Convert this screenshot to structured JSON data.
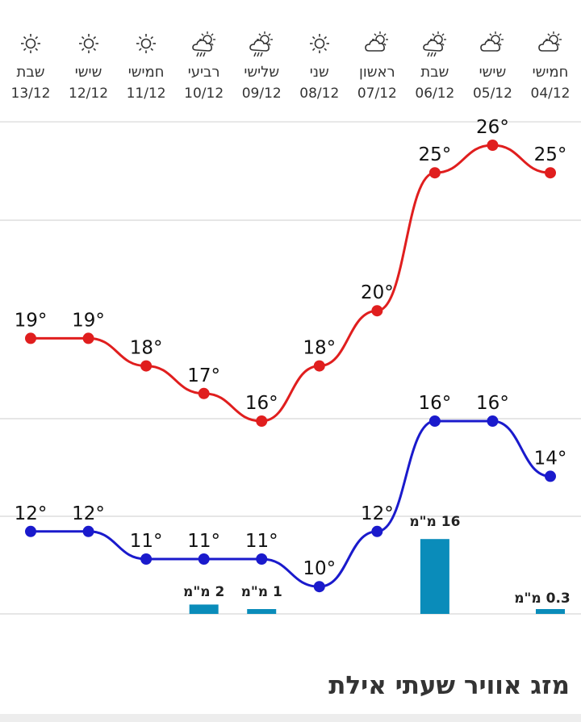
{
  "page": {
    "title": "מזג אוויר שעתי אילת"
  },
  "days": [
    {
      "name": "חמישי",
      "date": "04/12",
      "icon": "partly-cloudy-icon"
    },
    {
      "name": "שישי",
      "date": "05/12",
      "icon": "partly-cloudy-icon"
    },
    {
      "name": "שבת",
      "date": "06/12",
      "icon": "rain-showers-icon"
    },
    {
      "name": "ראשון",
      "date": "07/12",
      "icon": "partly-cloudy-icon"
    },
    {
      "name": "שני",
      "date": "08/12",
      "icon": "sunny-icon"
    },
    {
      "name": "שלישי",
      "date": "09/12",
      "icon": "rain-showers-icon"
    },
    {
      "name": "רביעי",
      "date": "10/12",
      "icon": "rain-showers-icon"
    },
    {
      "name": "חמישי",
      "date": "11/12",
      "icon": "sunny-icon"
    },
    {
      "name": "שישי",
      "date": "12/12",
      "icon": "sunny-icon"
    },
    {
      "name": "שבת",
      "date": "13/12",
      "icon": "sunny-icon"
    }
  ],
  "chart_data": {
    "type": "line",
    "x": [
      "04/12",
      "05/12",
      "06/12",
      "07/12",
      "08/12",
      "09/12",
      "10/12",
      "11/12",
      "12/12",
      "13/12"
    ],
    "x_direction": "right-to-left",
    "series": [
      {
        "values": [
          25,
          26,
          25,
          20,
          18,
          16,
          17,
          18,
          19,
          19
        ],
        "labels": [
          "25°",
          "26°",
          "25°",
          "20°",
          "18°",
          "16°",
          "17°",
          "18°",
          "19°",
          "19°"
        ],
        "color": "#e01e1e"
      },
      {
        "values": [
          14,
          16,
          16,
          12,
          10,
          11,
          11,
          11,
          12,
          12
        ],
        "labels": [
          "14°",
          "16°",
          "16°",
          "12°",
          "10°",
          "11°",
          "11°",
          "11°",
          "12°",
          "12°"
        ],
        "color": "#1a1acc"
      }
    ],
    "precipitation": {
      "type": "bar",
      "color": "#0a8cba",
      "values": [
        0.3,
        null,
        16,
        null,
        null,
        1,
        2,
        null,
        null,
        null
      ],
      "labels": [
        "0.3 מ\"מ",
        "",
        "16 מ\"מ",
        "",
        "",
        "1 מ\"מ",
        "2 מ\"מ",
        "",
        "",
        ""
      ]
    },
    "grid": true
  }
}
